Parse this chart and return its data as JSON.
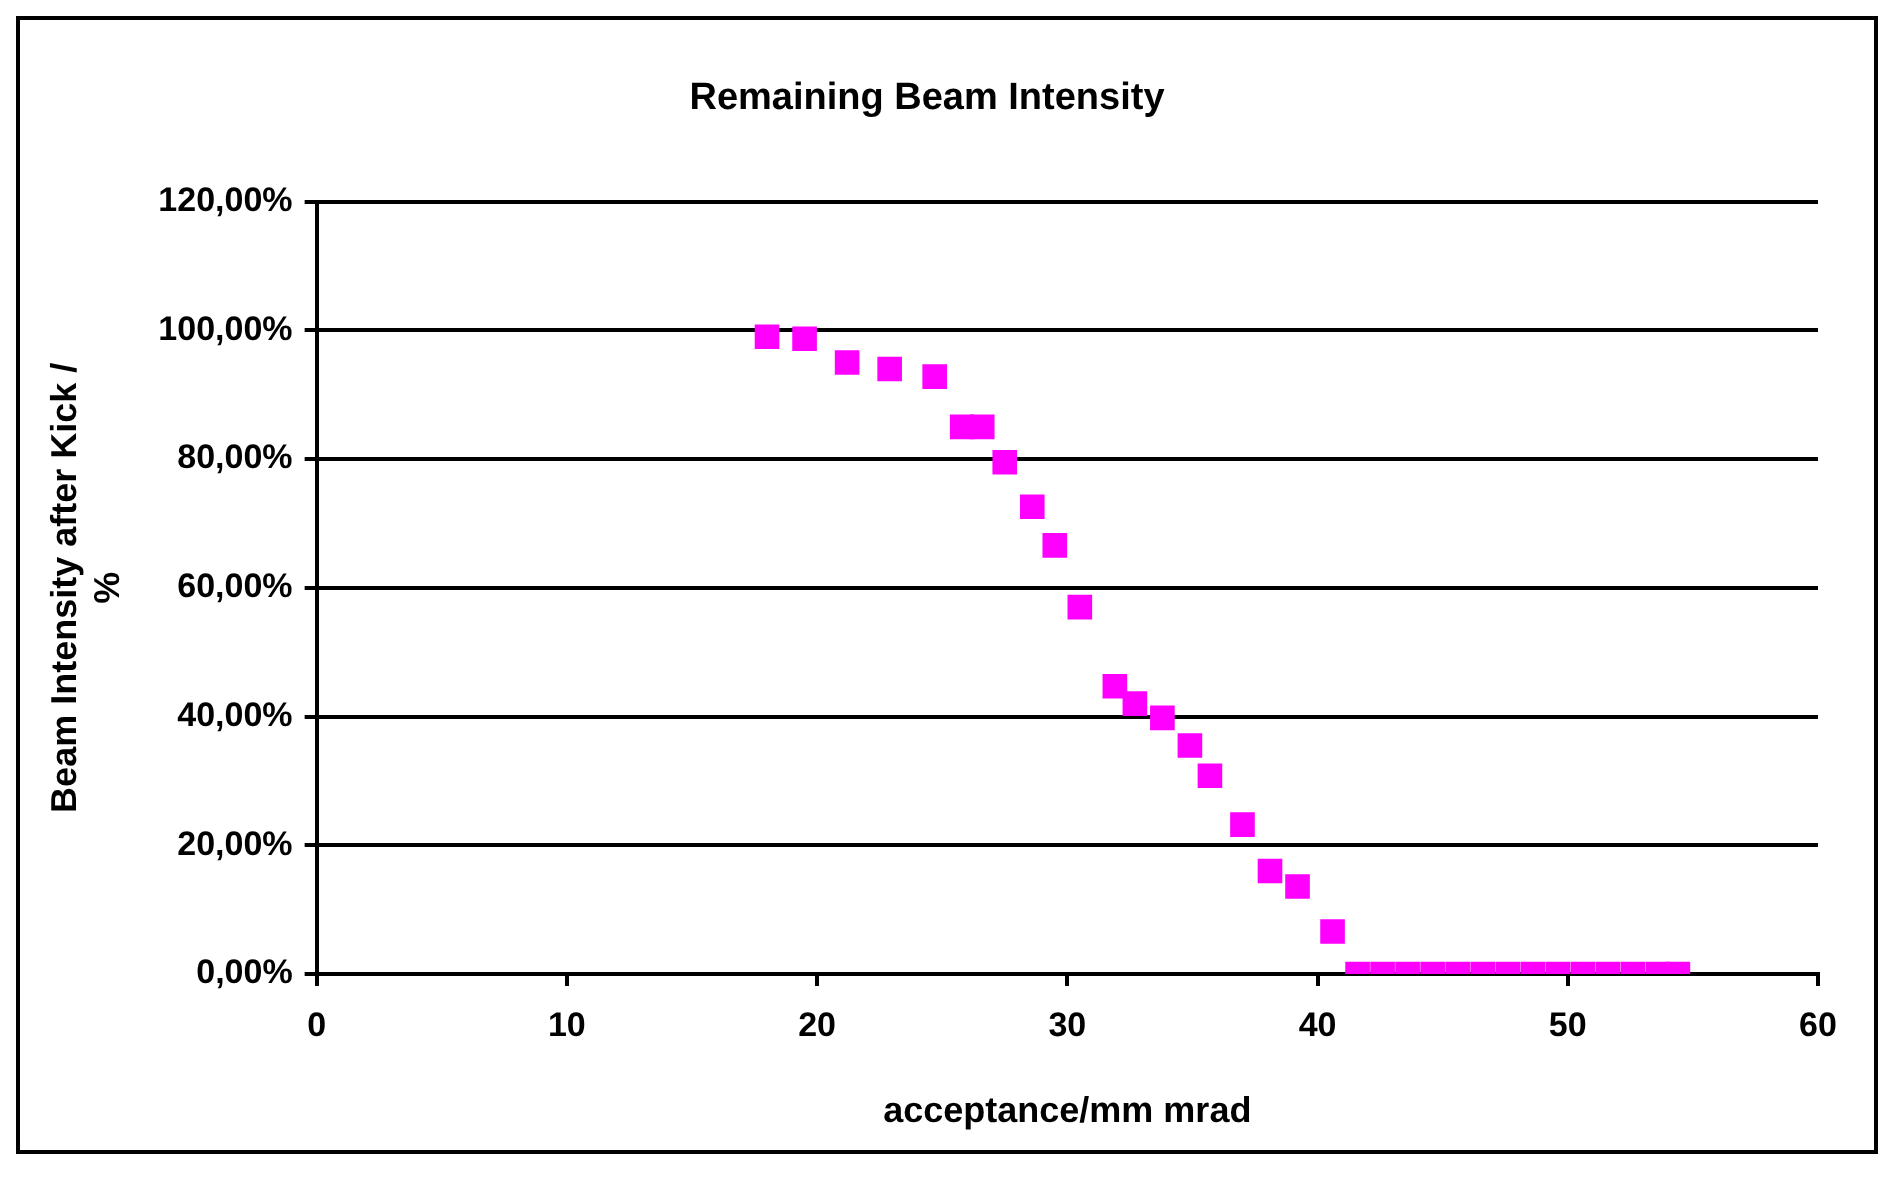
{
  "chart_data": {
    "type": "scatter",
    "title": "Remaining Beam Intensity",
    "xlabel": "acceptance/mm mrad",
    "ylabel": "Beam Intensity after Kick / %",
    "x": [
      18,
      19.5,
      21.2,
      22.9,
      24.7,
      25.8,
      26.6,
      27.5,
      28.6,
      29.5,
      30.5,
      31.9,
      32.7,
      33.8,
      34.9,
      35.7,
      37,
      38.1,
      39.2,
      40.6,
      41.6,
      42.6,
      43.6,
      44.6,
      45.6,
      46.6,
      47.6,
      48.6,
      49.6,
      50.6,
      51.6,
      52.6,
      53.6,
      54.4
    ],
    "series": [
      {
        "color": "#ff00ff",
        "values": [
          99,
          98.7,
          95,
          94,
          92.8,
          85,
          85,
          79.5,
          72.6,
          66.6,
          57,
          44.7,
          42,
          39.8,
          35.5,
          30.8,
          23.2,
          16,
          13.6,
          6.6,
          0,
          0,
          0,
          0,
          0,
          0,
          0,
          0,
          0,
          0,
          0,
          0,
          0,
          0
        ]
      }
    ],
    "xlim": [
      0,
      60
    ],
    "xticks": [
      0,
      10,
      20,
      30,
      40,
      50,
      60
    ],
    "ylim": [
      0,
      120
    ],
    "yticks": [
      {
        "value": 0,
        "label": "0,00%"
      },
      {
        "value": 20,
        "label": "20,00%"
      },
      {
        "value": 40,
        "label": "40,00%"
      },
      {
        "value": 60,
        "label": "60,00%"
      },
      {
        "value": 80,
        "label": "80,00%"
      },
      {
        "value": 100,
        "label": "100,00%"
      },
      {
        "value": 120,
        "label": "120,00%"
      }
    ],
    "grid": "y",
    "legend": false,
    "marker": "square"
  }
}
